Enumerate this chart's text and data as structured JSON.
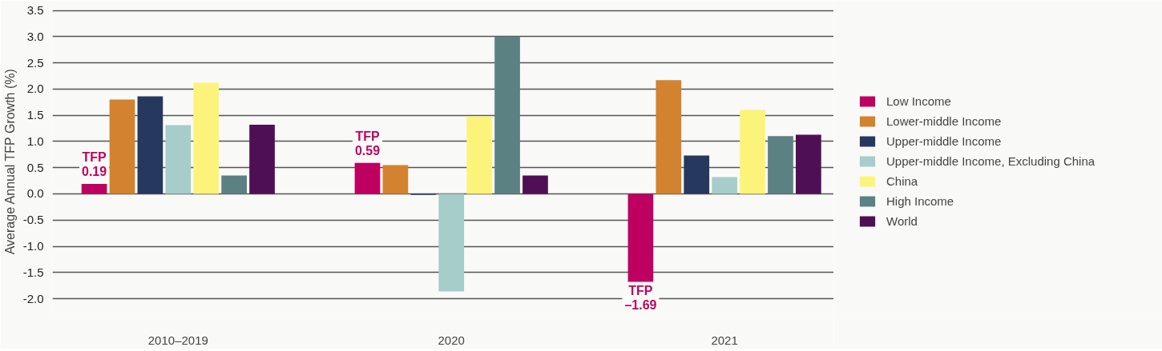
{
  "chart_data": {
    "type": "bar",
    "ylabel": "Average Annual TFP Growth (%)",
    "categories": [
      "2010–2019",
      "2020",
      "2021"
    ],
    "series": [
      {
        "name": "Low Income",
        "color": "#be0060",
        "values": [
          0.19,
          0.59,
          -1.69
        ],
        "value_labels": [
          "TFP\n0.19",
          "TFP\n0.59",
          "TFP\n–1.69"
        ]
      },
      {
        "name": "Lower-middle Income",
        "color": "#d3822f",
        "values": [
          1.8,
          0.55,
          2.17
        ]
      },
      {
        "name": "Upper-middle Income",
        "color": "#26385e",
        "values": [
          1.86,
          -0.02,
          0.73
        ]
      },
      {
        "name": "Upper-middle Income, Excluding China",
        "color": "#a6cdc9",
        "values": [
          1.31,
          -1.86,
          0.32
        ]
      },
      {
        "name": "China",
        "color": "#fcf47a",
        "values": [
          2.12,
          1.48,
          1.6
        ]
      },
      {
        "name": "High Income",
        "color": "#5b8183",
        "values": [
          0.35,
          3.0,
          1.1
        ]
      },
      {
        "name": "World",
        "color": "#4f0f55",
        "values": [
          1.32,
          0.35,
          1.13
        ]
      }
    ],
    "ylim": [
      -2.35,
      3.6
    ],
    "yticks": [
      {
        "value": -2,
        "label": "-2.0"
      },
      {
        "value": -1.5,
        "label": "-1.5"
      },
      {
        "value": -1,
        "label": "-1.0"
      },
      {
        "value": -0.5,
        "label": "-0.5"
      },
      {
        "value": 0,
        "label": "0.0"
      },
      {
        "value": 0.5,
        "label": "0.5"
      },
      {
        "value": 1,
        "label": "1.0"
      },
      {
        "value": 1.5,
        "label": "1.5"
      },
      {
        "value": 2,
        "label": "2.0"
      },
      {
        "value": 2.5,
        "label": "2.5"
      },
      {
        "value": 3,
        "label": "3.0"
      },
      {
        "value": 3.5,
        "label": "3.5"
      }
    ],
    "grid": "y",
    "legend": "right"
  }
}
